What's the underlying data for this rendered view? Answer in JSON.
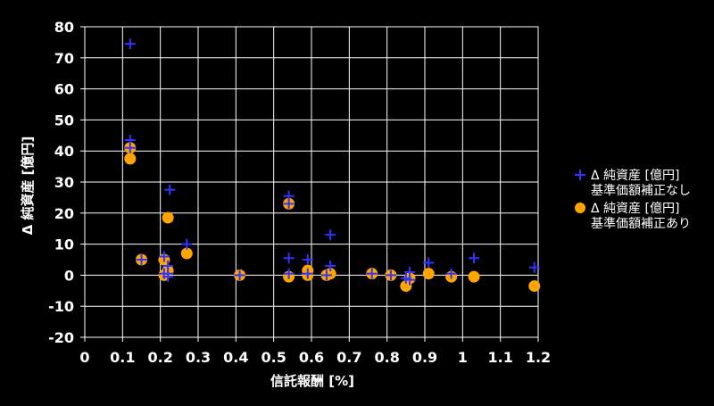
{
  "chart_data": {
    "type": "scatter",
    "xlabel": "信託報酬 [%]",
    "ylabel": "Δ 純資産 [億円]",
    "xlim": [
      0,
      1.2
    ],
    "ylim": [
      -20,
      80
    ],
    "xticks": [
      "0",
      "0.1",
      "0.2",
      "0.3",
      "0.4",
      "0.5",
      "0.6",
      "0.7",
      "0.8",
      "0.9",
      "1",
      "1.1",
      "1.2"
    ],
    "yticks": [
      "-20",
      "-10",
      "0",
      "10",
      "20",
      "30",
      "40",
      "50",
      "60",
      "70",
      "80"
    ],
    "grid": true,
    "legend_position": "right",
    "series": [
      {
        "name_line1": "Δ 純資産 [億円]",
        "name_line2": "基準価額補正なし",
        "marker": "plus",
        "color": "#3333ff",
        "points": [
          [
            0.12,
            74.5
          ],
          [
            0.12,
            43.5
          ],
          [
            0.12,
            41.0
          ],
          [
            0.15,
            5.0
          ],
          [
            0.21,
            6.0
          ],
          [
            0.21,
            0.5
          ],
          [
            0.22,
            3.0
          ],
          [
            0.22,
            0.5
          ],
          [
            0.22,
            -0.5
          ],
          [
            0.225,
            27.5
          ],
          [
            0.27,
            10.0
          ],
          [
            0.41,
            0.0
          ],
          [
            0.54,
            25.5
          ],
          [
            0.54,
            23.0
          ],
          [
            0.54,
            5.5
          ],
          [
            0.54,
            0.5
          ],
          [
            0.59,
            5.0
          ],
          [
            0.59,
            0.5
          ],
          [
            0.64,
            0.0
          ],
          [
            0.65,
            3.0
          ],
          [
            0.65,
            13.0
          ],
          [
            0.76,
            0.5
          ],
          [
            0.81,
            0.0
          ],
          [
            0.85,
            -1.0
          ],
          [
            0.86,
            1.0
          ],
          [
            0.86,
            -1.5
          ],
          [
            0.91,
            4.0
          ],
          [
            0.97,
            0.5
          ],
          [
            1.03,
            5.5
          ],
          [
            1.19,
            2.5
          ]
        ]
      },
      {
        "name_line1": "Δ 純資産 [億円]",
        "name_line2": "基準価額補正あり",
        "marker": "circle",
        "color": "#ffa500",
        "points": [
          [
            0.12,
            41.0
          ],
          [
            0.12,
            37.5
          ],
          [
            0.15,
            5.0
          ],
          [
            0.21,
            5.0
          ],
          [
            0.21,
            0.0
          ],
          [
            0.22,
            1.5
          ],
          [
            0.22,
            18.5
          ],
          [
            0.27,
            7.0
          ],
          [
            0.41,
            0.0
          ],
          [
            0.54,
            23.0
          ],
          [
            0.54,
            -0.5
          ],
          [
            0.59,
            1.5
          ],
          [
            0.59,
            0.0
          ],
          [
            0.64,
            0.0
          ],
          [
            0.65,
            0.5
          ],
          [
            0.76,
            0.5
          ],
          [
            0.81,
            0.0
          ],
          [
            0.85,
            -3.5
          ],
          [
            0.86,
            -1.0
          ],
          [
            0.91,
            0.5
          ],
          [
            0.97,
            -0.5
          ],
          [
            1.03,
            -0.5
          ],
          [
            1.19,
            -3.5
          ]
        ]
      }
    ]
  }
}
